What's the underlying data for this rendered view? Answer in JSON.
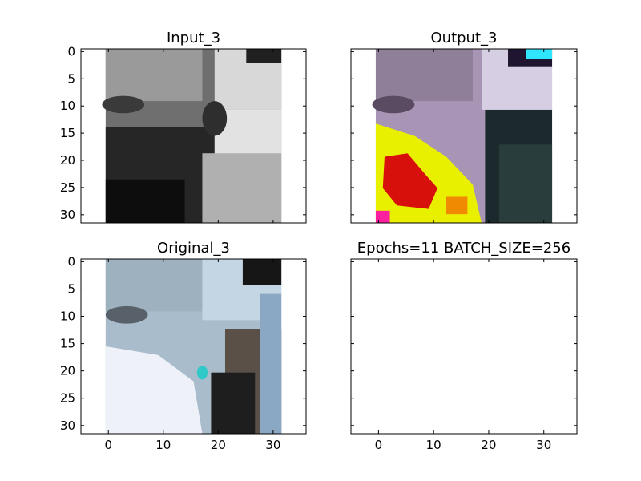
{
  "figure": {
    "background": "#ffffff"
  },
  "chart_data": [
    {
      "type": "heatmap",
      "title": "Input_3",
      "colormap": "grayscale",
      "xlim": [
        -5,
        36
      ],
      "ylim": [
        31.5,
        -0.5
      ],
      "xticks": [
        0,
        10,
        20,
        30
      ],
      "yticks": [
        0,
        5,
        10,
        15,
        20,
        25,
        30
      ],
      "xtick_labels_visible": false,
      "ytick_labels_visible": true,
      "image_extent": [
        -0.5,
        31.5,
        31.5,
        -0.5
      ]
    },
    {
      "type": "heatmap",
      "title": "Output_3",
      "colormap": "rgb",
      "xlim": [
        -5,
        36
      ],
      "ylim": [
        31.5,
        -0.5
      ],
      "xticks": [
        0,
        10,
        20,
        30
      ],
      "yticks": [
        0,
        5,
        10,
        15,
        20,
        25,
        30
      ],
      "xtick_labels_visible": false,
      "ytick_labels_visible": false,
      "image_extent": [
        -0.5,
        31.5,
        31.5,
        -0.5
      ]
    },
    {
      "type": "heatmap",
      "title": "Original_3",
      "colormap": "rgb",
      "xlim": [
        -5,
        36
      ],
      "ylim": [
        31.5,
        -0.5
      ],
      "xticks": [
        0,
        10,
        20,
        30
      ],
      "yticks": [
        0,
        5,
        10,
        15,
        20,
        25,
        30
      ],
      "xtick_labels_visible": true,
      "ytick_labels_visible": true,
      "image_extent": [
        -0.5,
        31.5,
        31.5,
        -0.5
      ]
    },
    {
      "type": "heatmap",
      "title": "Epochs=11 BATCH_SIZE=256",
      "colormap": "none",
      "xlim": [
        -5,
        36
      ],
      "ylim": [
        31.5,
        -0.5
      ],
      "xticks": [
        0,
        10,
        20,
        30
      ],
      "yticks": [
        0,
        5,
        10,
        15,
        20,
        25,
        30
      ],
      "xtick_labels_visible": true,
      "ytick_labels_visible": false,
      "image_extent": null
    }
  ]
}
